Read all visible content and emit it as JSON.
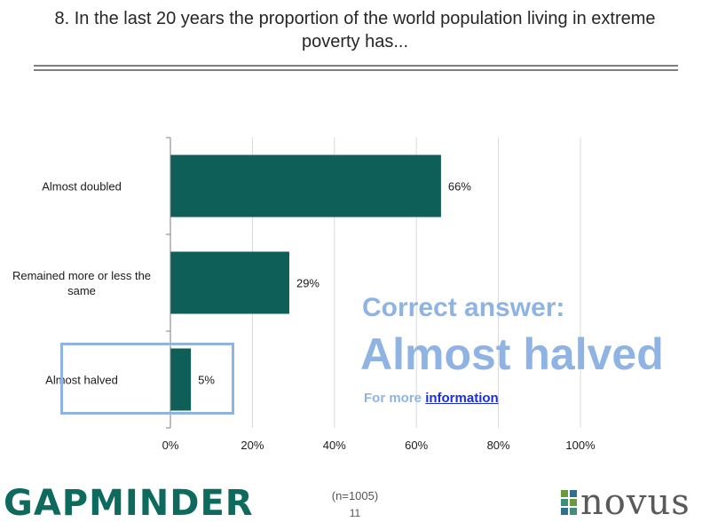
{
  "slide": {
    "title_line1": "8. In the last 20 years the proportion of the world population living in extreme",
    "title_line2": "poverty has...",
    "sample_size": "(n=1005)",
    "page_number": "11"
  },
  "answer": {
    "label": "Correct answer:",
    "value": "Almost halved",
    "more_prefix": "For more ",
    "more_link": "information"
  },
  "logos": {
    "left": "GAPMINDER",
    "right": "novus"
  },
  "colors": {
    "bar": "#0d5f58",
    "highlight": "#8fb4e3",
    "link": "#1a2de0",
    "grid": "#d9d9d9"
  },
  "chart_data": {
    "type": "bar",
    "orientation": "horizontal",
    "categories": [
      "Almost doubled",
      "Remained more or less the same",
      "Almost halved"
    ],
    "category_label_lines": [
      [
        "Almost doubled"
      ],
      [
        "Remained more or less the",
        "same"
      ],
      [
        "Almost halved"
      ]
    ],
    "values": [
      66,
      29,
      5
    ],
    "data_labels": [
      "66%",
      "29%",
      "5%"
    ],
    "xlim": [
      0,
      100
    ],
    "x_ticks": [
      0,
      20,
      40,
      60,
      80,
      100
    ],
    "x_tick_labels": [
      "0%",
      "20%",
      "40%",
      "60%",
      "80%",
      "100%"
    ],
    "grid": true,
    "highlighted_category": "Almost halved"
  }
}
